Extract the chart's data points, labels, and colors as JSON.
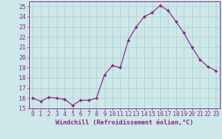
{
  "x": [
    0,
    1,
    2,
    3,
    4,
    5,
    6,
    7,
    8,
    9,
    10,
    11,
    12,
    13,
    14,
    15,
    16,
    17,
    18,
    19,
    20,
    21,
    22,
    23
  ],
  "y": [
    16.0,
    15.7,
    16.1,
    16.0,
    15.9,
    15.3,
    15.8,
    15.8,
    16.0,
    18.3,
    19.2,
    19.0,
    21.7,
    23.0,
    24.0,
    24.4,
    25.1,
    24.6,
    23.5,
    22.4,
    21.0,
    19.8,
    19.1,
    18.7
  ],
  "line_color": "#882288",
  "marker": "D",
  "marker_size": 2.2,
  "bg_color": "#cce8e8",
  "grid_color": "#aacccc",
  "xlabel": "Windchill (Refroidissement éolien,°C)",
  "xlabel_fontsize": 6.5,
  "tick_fontsize": 6.0,
  "ylim": [
    15,
    25.5
  ],
  "yticks": [
    15,
    16,
    17,
    18,
    19,
    20,
    21,
    22,
    23,
    24,
    25
  ],
  "xticks": [
    0,
    1,
    2,
    3,
    4,
    5,
    6,
    7,
    8,
    9,
    10,
    11,
    12,
    13,
    14,
    15,
    16,
    17,
    18,
    19,
    20,
    21,
    22,
    23
  ],
  "xlim": [
    -0.5,
    23.5
  ],
  "spine_color": "#882288",
  "tick_color": "#882288",
  "line_width": 0.9
}
